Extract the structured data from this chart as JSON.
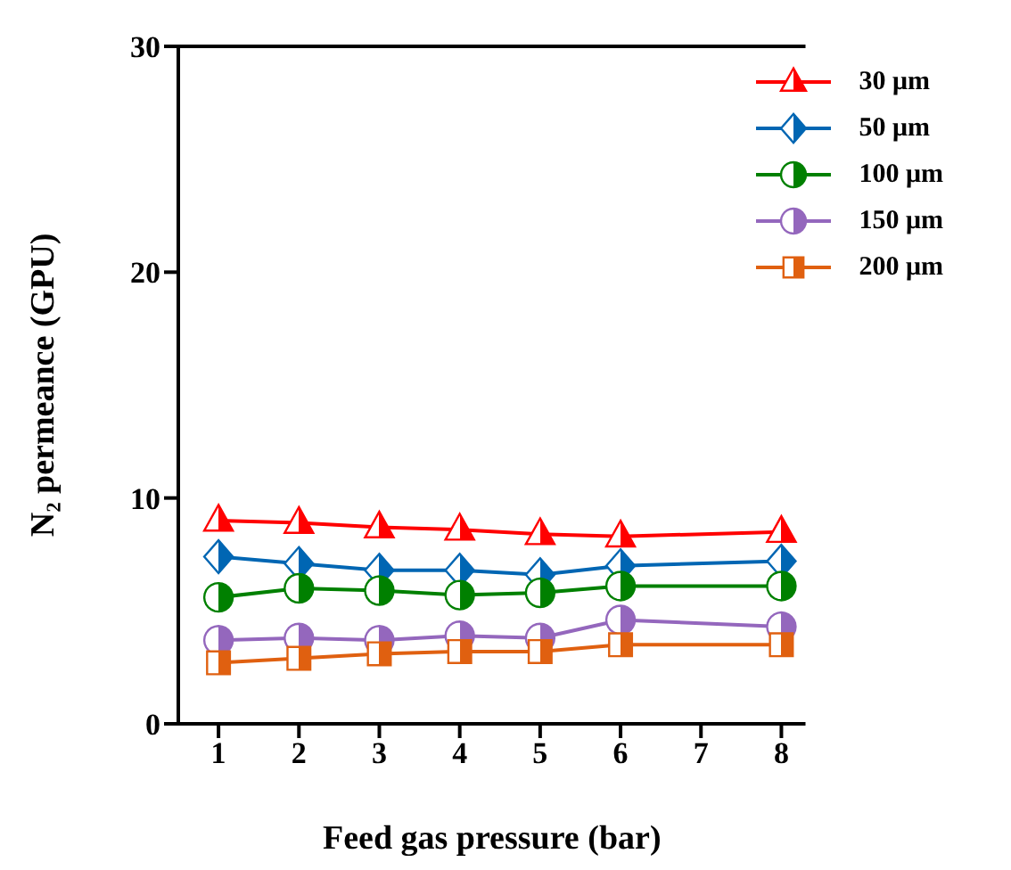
{
  "chart_data": {
    "type": "line",
    "xlabel": "Feed gas pressure (bar)",
    "ylabel": "N₂ permeance (GPU)",
    "x": [
      1,
      2,
      3,
      4,
      5,
      6,
      8
    ],
    "series": [
      {
        "name": "30 μm",
        "color": "#ff0000",
        "marker": "triangle",
        "values": [
          9.0,
          8.9,
          8.7,
          8.6,
          8.4,
          8.3,
          8.5
        ]
      },
      {
        "name": "50 μm",
        "color": "#0066b3",
        "marker": "diamond",
        "values": [
          7.4,
          7.1,
          6.8,
          6.8,
          6.6,
          7.0,
          7.2
        ]
      },
      {
        "name": "100 μm",
        "color": "#008000",
        "marker": "circle",
        "values": [
          5.6,
          6.0,
          5.9,
          5.7,
          5.8,
          6.1,
          6.1
        ]
      },
      {
        "name": "150 μm",
        "color": "#9467bd",
        "marker": "circle",
        "values": [
          3.7,
          3.8,
          3.7,
          3.9,
          3.8,
          4.6,
          4.3
        ]
      },
      {
        "name": "200 μm",
        "color": "#e06010",
        "marker": "square",
        "values": [
          2.7,
          2.9,
          3.1,
          3.2,
          3.2,
          3.5,
          3.5
        ]
      }
    ],
    "xlim": [
      0.5,
      8.3
    ],
    "xticks": [
      1,
      2,
      3,
      4,
      5,
      6,
      7,
      8
    ],
    "ylim": [
      0,
      30
    ],
    "yticks": [
      0,
      10,
      20,
      30
    ],
    "legend": "top right",
    "grid": false,
    "line_style": "solid"
  }
}
